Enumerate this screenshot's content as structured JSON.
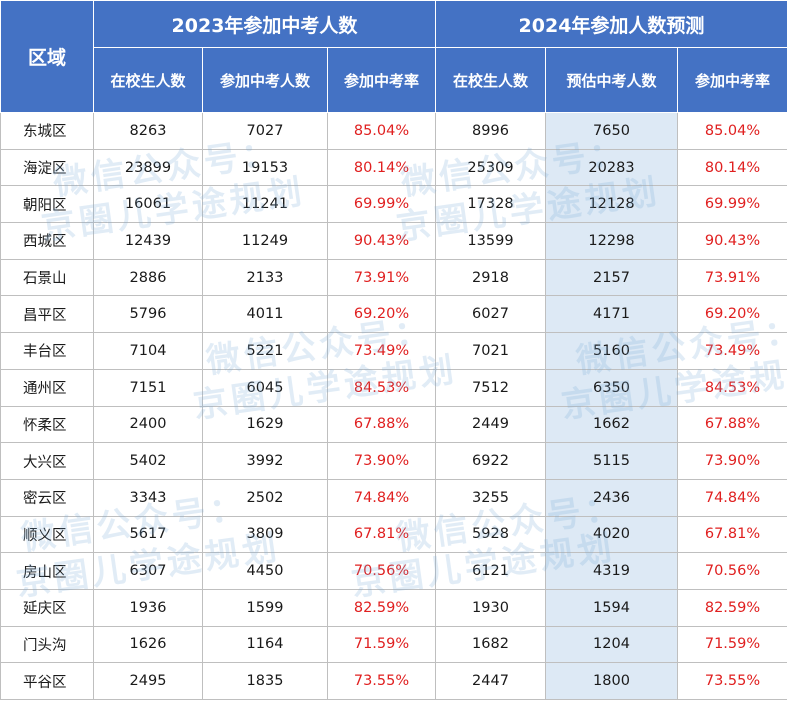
{
  "header": {
    "region": "区域",
    "group_2023": "2023年参加中考人数",
    "group_2024": "2024年参加人数预测",
    "columns_2023": [
      "在校生人数",
      "参加中考人数",
      "参加中考率"
    ],
    "columns_2024": [
      "在校生人数",
      "预估中考人数",
      "参加中考率"
    ]
  },
  "rows": [
    {
      "region": "东城区",
      "s2023": "8263",
      "e2023": "7027",
      "r2023": "85.04%",
      "s2024": "8996",
      "e2024": "7650",
      "r2024": "85.04%"
    },
    {
      "region": "海淀区",
      "s2023": "23899",
      "e2023": "19153",
      "r2023": "80.14%",
      "s2024": "25309",
      "e2024": "20283",
      "r2024": "80.14%"
    },
    {
      "region": "朝阳区",
      "s2023": "16061",
      "e2023": "11241",
      "r2023": "69.99%",
      "s2024": "17328",
      "e2024": "12128",
      "r2024": "69.99%"
    },
    {
      "region": "西城区",
      "s2023": "12439",
      "e2023": "11249",
      "r2023": "90.43%",
      "s2024": "13599",
      "e2024": "12298",
      "r2024": "90.43%"
    },
    {
      "region": "石景山",
      "s2023": "2886",
      "e2023": "2133",
      "r2023": "73.91%",
      "s2024": "2918",
      "e2024": "2157",
      "r2024": "73.91%"
    },
    {
      "region": "昌平区",
      "s2023": "5796",
      "e2023": "4011",
      "r2023": "69.20%",
      "s2024": "6027",
      "e2024": "4171",
      "r2024": "69.20%"
    },
    {
      "region": "丰台区",
      "s2023": "7104",
      "e2023": "5221",
      "r2023": "73.49%",
      "s2024": "7021",
      "e2024": "5160",
      "r2024": "73.49%"
    },
    {
      "region": "通州区",
      "s2023": "7151",
      "e2023": "6045",
      "r2023": "84.53%",
      "s2024": "7512",
      "e2024": "6350",
      "r2024": "84.53%"
    },
    {
      "region": "怀柔区",
      "s2023": "2400",
      "e2023": "1629",
      "r2023": "67.88%",
      "s2024": "2449",
      "e2024": "1662",
      "r2024": "67.88%"
    },
    {
      "region": "大兴区",
      "s2023": "5402",
      "e2023": "3992",
      "r2023": "73.90%",
      "s2024": "6922",
      "e2024": "5115",
      "r2024": "73.90%"
    },
    {
      "region": "密云区",
      "s2023": "3343",
      "e2023": "2502",
      "r2023": "74.84%",
      "s2024": "3255",
      "e2024": "2436",
      "r2024": "74.84%"
    },
    {
      "region": "顺义区",
      "s2023": "5617",
      "e2023": "3809",
      "r2023": "67.81%",
      "s2024": "5928",
      "e2024": "4020",
      "r2024": "67.81%"
    },
    {
      "region": "房山区",
      "s2023": "6307",
      "e2023": "4450",
      "r2023": "70.56%",
      "s2024": "6121",
      "e2024": "4319",
      "r2024": "70.56%"
    },
    {
      "region": "延庆区",
      "s2023": "1936",
      "e2023": "1599",
      "r2023": "82.59%",
      "s2024": "1930",
      "e2024": "1594",
      "r2024": "82.59%"
    },
    {
      "region": "门头沟",
      "s2023": "1626",
      "e2023": "1164",
      "r2023": "71.59%",
      "s2024": "1682",
      "e2024": "1204",
      "r2024": "71.59%"
    },
    {
      "region": "平谷区",
      "s2023": "2495",
      "e2023": "1835",
      "r2023": "73.55%",
      "s2024": "2447",
      "e2024": "1800",
      "r2024": "73.55%"
    }
  ],
  "watermark": {
    "line1": "微信公众号：",
    "line2": "京圈儿学途规划"
  },
  "colors": {
    "header_bg": "#4472c4",
    "header_text": "#ffffff",
    "rate_text": "#e02020",
    "highlight_column": "#dde9f5",
    "watermark": "#78aad7"
  }
}
